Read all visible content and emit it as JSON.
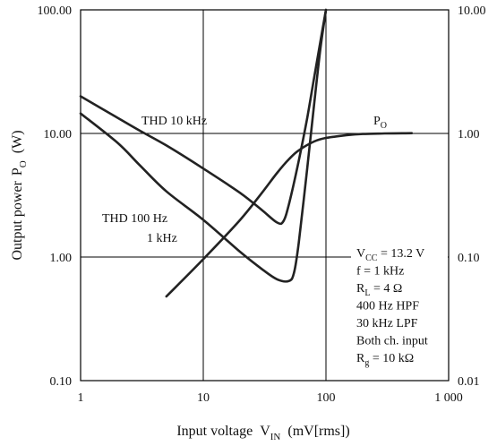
{
  "chart_data": {
    "type": "line",
    "xlabel": {
      "main": "Input voltage",
      "sym": "V",
      "sub": "IN",
      "unit": "(mV[rms])"
    },
    "ylabel": {
      "main": "Output power",
      "sym": "P",
      "sub": "O",
      "unit": "(W)"
    },
    "x_scale": "log",
    "y_scale": "log",
    "xlim": [
      1,
      1000
    ],
    "ylim": [
      0.1,
      100
    ],
    "y2lim": [
      0.01,
      10
    ],
    "grid": true,
    "x_ticks": [
      {
        "v": 1,
        "label": "1"
      },
      {
        "v": 10,
        "label": "10"
      },
      {
        "v": 100,
        "label": "100"
      },
      {
        "v": 1000,
        "label": "1 000"
      }
    ],
    "y_ticks": [
      {
        "v": 0.1,
        "label": "0.10"
      },
      {
        "v": 1,
        "label": "1.00"
      },
      {
        "v": 10,
        "label": "10.00"
      },
      {
        "v": 100,
        "label": "100.00"
      }
    ],
    "y2_ticks": [
      {
        "v": 0.01,
        "label": "0.01"
      },
      {
        "v": 0.1,
        "label": "0.10"
      },
      {
        "v": 1,
        "label": "1.00"
      },
      {
        "v": 10,
        "label": "10.00"
      }
    ],
    "series": [
      {
        "name": "PO",
        "axis": "left",
        "points": [
          [
            5,
            0.48
          ],
          [
            10,
            0.96
          ],
          [
            20,
            2.0
          ],
          [
            30,
            3.3
          ],
          [
            40,
            4.8
          ],
          [
            50,
            6.2
          ],
          [
            60,
            7.3
          ],
          [
            80,
            8.6
          ],
          [
            100,
            9.2
          ],
          [
            150,
            9.7
          ],
          [
            200,
            9.9
          ],
          [
            300,
            10.0
          ],
          [
            500,
            10.05
          ]
        ]
      },
      {
        "name": "THD 10 kHz",
        "axis": "right",
        "points": [
          [
            1,
            2.0
          ],
          [
            2,
            1.34
          ],
          [
            3,
            1.06
          ],
          [
            5,
            0.8
          ],
          [
            10,
            0.52
          ],
          [
            20,
            0.33
          ],
          [
            30,
            0.24
          ],
          [
            40,
            0.19
          ],
          [
            45,
            0.195
          ],
          [
            50,
            0.27
          ],
          [
            60,
            0.6
          ],
          [
            70,
            1.3
          ],
          [
            80,
            2.8
          ],
          [
            90,
            5.5
          ],
          [
            100,
            10.0
          ]
        ]
      },
      {
        "name": "THD 100 Hz / 1 kHz",
        "axis": "right",
        "points": [
          [
            1,
            1.45
          ],
          [
            2,
            0.84
          ],
          [
            3,
            0.56
          ],
          [
            5,
            0.34
          ],
          [
            10,
            0.2
          ],
          [
            20,
            0.11
          ],
          [
            30,
            0.08
          ],
          [
            40,
            0.066
          ],
          [
            50,
            0.064
          ],
          [
            55,
            0.075
          ],
          [
            60,
            0.13
          ],
          [
            70,
            0.5
          ],
          [
            80,
            1.7
          ],
          [
            90,
            4.8
          ],
          [
            100,
            10.0
          ]
        ]
      }
    ],
    "annotations": {
      "thd10k": "THD 10 kHz",
      "thd100": "THD 100 Hz",
      "thd1k": "1 kHz",
      "po": {
        "sym": "P",
        "sub": "O"
      },
      "conditions": [
        {
          "pre": "V",
          "sub": "CC",
          "post": " = 13.2 V"
        },
        {
          "pre": "f = 1 kHz",
          "sub": "",
          "post": ""
        },
        {
          "pre": "R",
          "sub": "L",
          "post": " = 4 Ω"
        },
        {
          "pre": "400 Hz HPF",
          "sub": "",
          "post": ""
        },
        {
          "pre": "30 kHz LPF",
          "sub": "",
          "post": ""
        },
        {
          "pre": "Both ch. input",
          "sub": "",
          "post": ""
        },
        {
          "pre": "R",
          "sub": "g",
          "post": " = 10 kΩ"
        }
      ]
    }
  }
}
